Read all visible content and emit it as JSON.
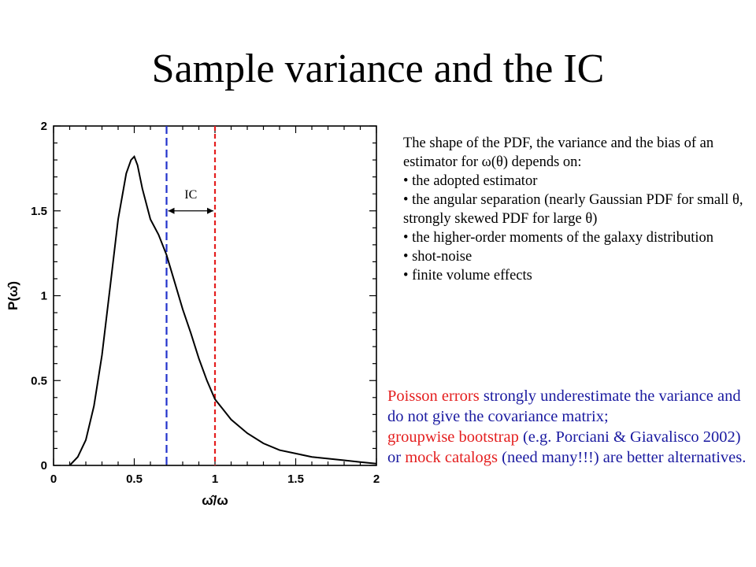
{
  "slide": {
    "title": "Sample variance and the IC"
  },
  "text_block": {
    "intro": "The shape of the PDF, the  variance and the bias of an estimator for ω(θ) depends on:",
    "bullets": [
      "• the adopted estimator",
      "• the angular separation (nearly Gaussian PDF for small θ, strongly skewed PDF for large θ)",
      "• the higher-order moments of the galaxy distribution",
      "• shot-noise",
      "• finite volume effects"
    ]
  },
  "note": {
    "line1_red": "Poisson errors",
    "line1_rest": " strongly underestimate the variance and do not give the covariance matrix;",
    "line2_red": "groupwise bootstrap",
    "line2_mid": " (e.g. Porciani & Giavalisco 2002) or ",
    "line2_red2": "mock catalogs",
    "line2_rest": " (need many!!!) are better alternatives."
  },
  "colors": {
    "text_blue": "#1a1aa0",
    "text_red": "#e41e1e",
    "line_blue": "#2233cc",
    "line_red": "#e41e1e",
    "curve": "#000000"
  },
  "chart_data": {
    "type": "line",
    "xlabel": "ω̂/ω",
    "ylabel": "P(ω̂)",
    "xlim": [
      0,
      2
    ],
    "ylim": [
      0,
      2
    ],
    "xticks": [
      "0",
      "0.5",
      "1",
      "1.5",
      "2"
    ],
    "yticks": [
      "0",
      "0.5",
      "1",
      "1.5",
      "2"
    ],
    "series": [
      {
        "x": [
          0.1,
          0.15,
          0.2,
          0.25,
          0.3,
          0.35,
          0.4,
          0.45,
          0.48,
          0.5,
          0.52,
          0.55,
          0.6,
          0.65,
          0.7,
          0.75,
          0.8,
          0.85,
          0.9,
          0.95,
          1.0,
          1.05,
          1.1,
          1.2,
          1.3,
          1.4,
          1.5,
          1.6,
          1.7,
          1.8,
          1.9,
          2.0
        ],
        "y": [
          0.0,
          0.05,
          0.15,
          0.35,
          0.65,
          1.05,
          1.45,
          1.72,
          1.8,
          1.82,
          1.77,
          1.63,
          1.45,
          1.36,
          1.24,
          1.08,
          0.92,
          0.78,
          0.63,
          0.5,
          0.39,
          0.33,
          0.27,
          0.19,
          0.13,
          0.09,
          0.07,
          0.05,
          0.04,
          0.03,
          0.02,
          0.01
        ]
      }
    ],
    "vlines": [
      {
        "x": 0.7,
        "style": "dashed",
        "color": "blue"
      },
      {
        "x": 1.0,
        "style": "dashed",
        "color": "red"
      }
    ],
    "annotation": {
      "text": "IC",
      "x_from": 0.7,
      "x_to": 1.0,
      "y": 1.5
    }
  }
}
